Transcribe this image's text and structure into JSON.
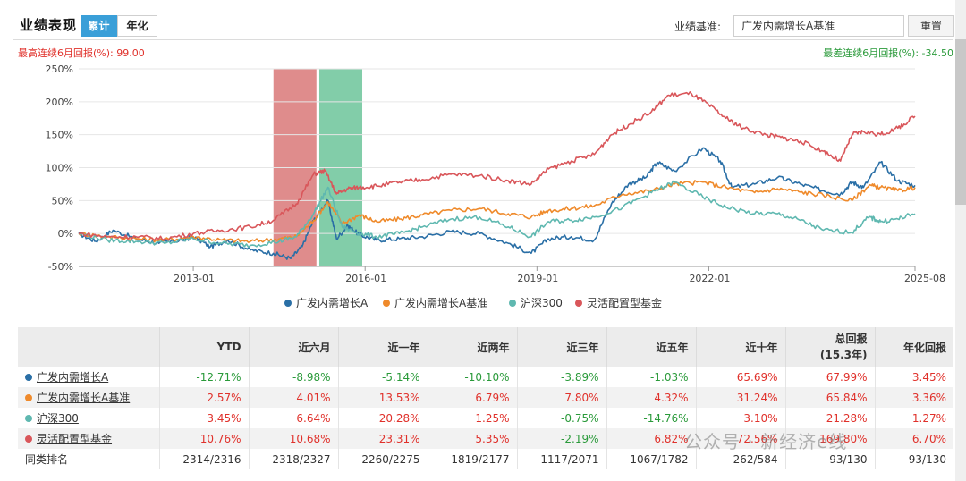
{
  "header": {
    "title": "业绩表现",
    "tabs": [
      "累计",
      "年化"
    ],
    "benchmark_label": "业绩基准:",
    "benchmark_value": "广发内需增长A基准",
    "reset_label": "重置"
  },
  "drawdown": {
    "max_high": "最高连续6月回报(%): 99.00",
    "max_low": "最差连续6月回报(%): -34.50"
  },
  "chart_data": {
    "type": "line",
    "x_ticks": [
      "2013-01",
      "2016-01",
      "2019-01",
      "2022-01",
      "2025-08"
    ],
    "y_ticks": [
      "250%",
      "200%",
      "150%",
      "100%",
      "50%",
      "0%",
      "-50%"
    ],
    "ylim": [
      -50,
      250
    ],
    "xlim": [
      2011.0,
      2025.6
    ],
    "grid": true,
    "highlight_bands": [
      {
        "from": 2014.4,
        "to": 2015.15,
        "color": "#d97878"
      },
      {
        "from": 2015.2,
        "to": 2015.95,
        "color": "#6cc49a"
      }
    ],
    "legend_position": "bottom",
    "series": [
      {
        "name": "广发内需增长A",
        "color": "#2a6fa6",
        "x": [
          2011.0,
          2011.3,
          2011.6,
          2012.0,
          2012.4,
          2012.8,
          2013.0,
          2013.3,
          2013.6,
          2014.0,
          2014.4,
          2014.7,
          2014.9,
          2015.1,
          2015.35,
          2015.5,
          2015.7,
          2015.9,
          2016.2,
          2016.6,
          2017.0,
          2017.5,
          2018.0,
          2018.5,
          2018.9,
          2019.2,
          2019.6,
          2020.0,
          2020.3,
          2020.6,
          2020.9,
          2021.1,
          2021.4,
          2021.9,
          2022.2,
          2022.4,
          2022.8,
          2023.2,
          2023.6,
          2024.0,
          2024.3,
          2024.5,
          2024.7,
          2025.0,
          2025.3,
          2025.6
        ],
        "y": [
          0,
          -12,
          5,
          -8,
          -15,
          -10,
          -5,
          -20,
          -10,
          -25,
          -30,
          -38,
          -20,
          20,
          50,
          -8,
          12,
          -2,
          -10,
          -8,
          -5,
          3,
          0,
          -15,
          -30,
          -8,
          -5,
          -10,
          45,
          75,
          85,
          108,
          95,
          130,
          110,
          70,
          75,
          85,
          75,
          65,
          60,
          78,
          70,
          108,
          80,
          73
        ]
      },
      {
        "name": "广发内需增长A基准",
        "color": "#ef8a2b",
        "x": [
          2011.0,
          2011.5,
          2012.0,
          2012.5,
          2013.0,
          2013.5,
          2014.0,
          2014.5,
          2014.8,
          2015.1,
          2015.35,
          2015.6,
          2015.9,
          2016.2,
          2016.6,
          2017.0,
          2017.5,
          2018.0,
          2018.5,
          2018.9,
          2019.2,
          2019.6,
          2020.0,
          2020.5,
          2021.0,
          2021.4,
          2021.9,
          2022.3,
          2022.8,
          2023.2,
          2023.6,
          2024.0,
          2024.5,
          2024.8,
          2025.0,
          2025.3,
          2025.6
        ],
        "y": [
          0,
          -5,
          -8,
          -10,
          -5,
          -10,
          -12,
          -8,
          -5,
          20,
          48,
          15,
          28,
          18,
          22,
          28,
          35,
          38,
          30,
          25,
          35,
          38,
          42,
          60,
          65,
          75,
          78,
          70,
          62,
          68,
          63,
          58,
          50,
          73,
          70,
          65,
          70
        ]
      },
      {
        "name": "沪深300",
        "color": "#5fb8b0",
        "x": [
          2011.0,
          2011.5,
          2012.0,
          2012.5,
          2013.0,
          2013.5,
          2014.0,
          2014.5,
          2014.8,
          2015.1,
          2015.35,
          2015.6,
          2015.9,
          2016.2,
          2016.6,
          2017.0,
          2017.5,
          2018.0,
          2018.5,
          2018.9,
          2019.2,
          2019.6,
          2020.0,
          2020.5,
          2021.0,
          2021.4,
          2021.9,
          2022.3,
          2022.8,
          2023.2,
          2023.6,
          2024.0,
          2024.5,
          2024.8,
          2025.0,
          2025.3,
          2025.6
        ],
        "y": [
          0,
          -10,
          -12,
          -15,
          -8,
          -15,
          -18,
          -12,
          -5,
          30,
          70,
          10,
          0,
          -5,
          0,
          10,
          22,
          25,
          10,
          -5,
          18,
          20,
          25,
          40,
          62,
          78,
          55,
          40,
          30,
          30,
          20,
          5,
          2,
          25,
          18,
          22,
          30
        ]
      },
      {
        "name": "灵活配置型基金",
        "color": "#d9565a",
        "x": [
          2011.0,
          2011.5,
          2012.0,
          2012.5,
          2013.0,
          2013.5,
          2014.0,
          2014.4,
          2014.8,
          2015.1,
          2015.3,
          2015.5,
          2015.7,
          2015.9,
          2016.2,
          2016.6,
          2017.0,
          2017.5,
          2018.0,
          2018.5,
          2018.9,
          2019.2,
          2019.6,
          2020.0,
          2020.3,
          2020.6,
          2021.0,
          2021.3,
          2021.7,
          2022.0,
          2022.3,
          2022.6,
          2023.0,
          2023.3,
          2023.6,
          2024.0,
          2024.3,
          2024.5,
          2024.7,
          2025.0,
          2025.3,
          2025.6
        ],
        "y": [
          0,
          -5,
          -5,
          -8,
          0,
          5,
          10,
          20,
          45,
          90,
          95,
          60,
          68,
          70,
          72,
          78,
          82,
          90,
          88,
          80,
          75,
          98,
          110,
          120,
          150,
          165,
          185,
          210,
          212,
          195,
          175,
          160,
          150,
          145,
          140,
          125,
          110,
          150,
          155,
          150,
          160,
          178
        ]
      }
    ]
  },
  "legend": [
    "广发内需增长A",
    "广发内需增长A基准",
    "沪深300",
    "灵活配置型基金"
  ],
  "table": {
    "headers": [
      "",
      "YTD",
      "近六月",
      "近一年",
      "近两年",
      "近三年",
      "近五年",
      "近十年",
      "总回报\n(15.3年)",
      "年化回报"
    ],
    "header_total_line1": "总回报",
    "header_total_line2": "(15.3年)",
    "rows": [
      {
        "name": "广发内需增长A",
        "color": "#2a6fa6",
        "values": [
          "-12.71%",
          "-8.98%",
          "-5.14%",
          "-10.10%",
          "-3.89%",
          "-1.03%",
          "65.69%",
          "67.99%",
          "3.45%"
        ]
      },
      {
        "name": "广发内需增长A基准",
        "color": "#ef8a2b",
        "values": [
          "2.57%",
          "4.01%",
          "13.53%",
          "6.79%",
          "7.80%",
          "4.32%",
          "31.24%",
          "65.84%",
          "3.36%"
        ]
      },
      {
        "name": "沪深300",
        "color": "#5fb8b0",
        "values": [
          "3.45%",
          "6.64%",
          "20.28%",
          "1.25%",
          "-0.75%",
          "-14.76%",
          "3.10%",
          "21.28%",
          "1.27%"
        ]
      },
      {
        "name": "灵活配置型基金",
        "color": "#d9565a",
        "values": [
          "10.76%",
          "10.68%",
          "23.31%",
          "5.35%",
          "-2.19%",
          "6.82%",
          "72.56%",
          "169.80%",
          "6.70%"
        ]
      },
      {
        "name": "同类排名",
        "color": "",
        "values": [
          "2314/2316",
          "2318/2327",
          "2260/2275",
          "1819/2177",
          "1117/2071",
          "1067/1782",
          "262/584",
          "93/130",
          "93/130"
        ]
      }
    ]
  },
  "watermark": "公众号 · 新经济e线",
  "colors": {
    "accent": "#3a9fd8",
    "positive": "#e0312b",
    "negative": "#2a9a3a"
  }
}
